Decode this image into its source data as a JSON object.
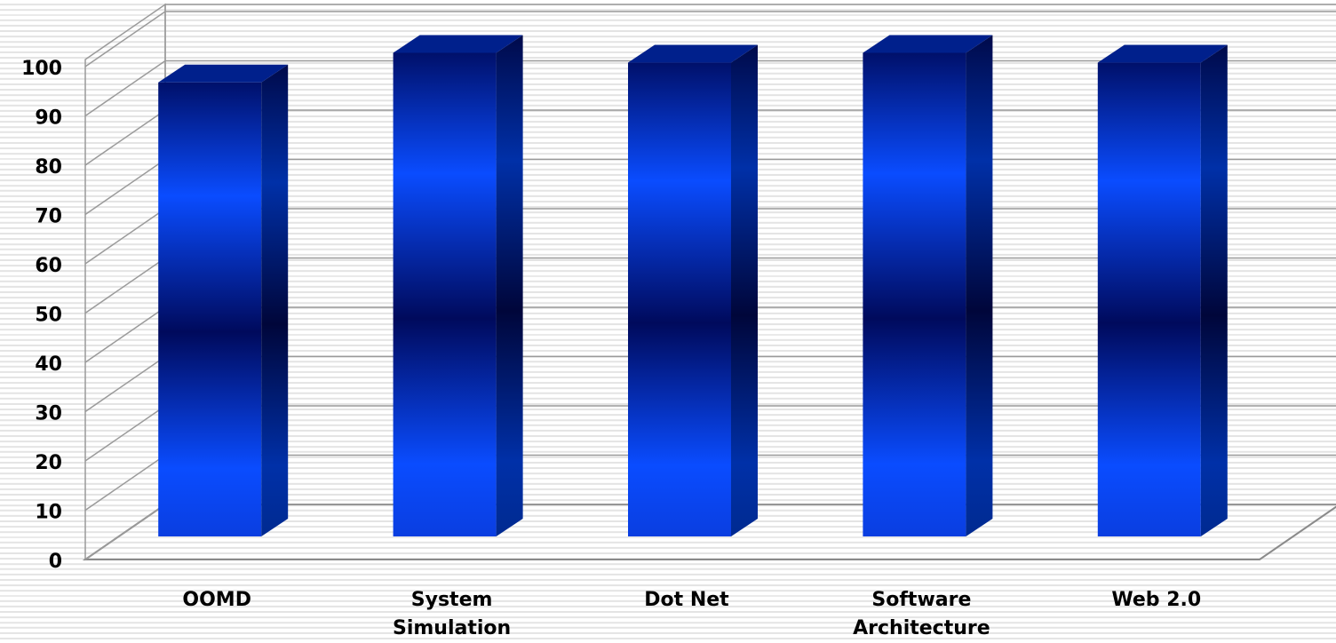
{
  "chart_data": {
    "type": "bar",
    "style": "3d-column",
    "categories": [
      "OOMD",
      "System Simulation",
      "Dot Net",
      "Software Architecture",
      "Web 2.0"
    ],
    "category_lines": [
      [
        "OOMD"
      ],
      [
        "System",
        "Simulation"
      ],
      [
        "Dot Net"
      ],
      [
        "Software",
        "Architecture"
      ],
      [
        "Web 2.0"
      ]
    ],
    "values": [
      95,
      101,
      99,
      101,
      99
    ],
    "ylim": [
      0,
      100
    ],
    "yticks": [
      0,
      10,
      20,
      30,
      40,
      50,
      60,
      70,
      80,
      90,
      100
    ],
    "title": "",
    "xlabel": "",
    "ylabel": "",
    "grid": true,
    "legend": "none",
    "colors": {
      "bar_light": "#0a4cff",
      "bar_dark": "#000a5c",
      "bar_side": "#00156e",
      "bar_top": "#00208c"
    }
  }
}
